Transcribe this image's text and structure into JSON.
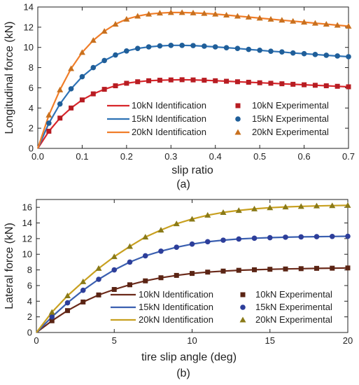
{
  "chart_data": [
    {
      "type": "line",
      "caption": "(a)",
      "xlabel": "slip ratio",
      "ylabel": "Longitudinal force (kN)",
      "xlim": [
        0,
        0.7
      ],
      "ylim": [
        0,
        14
      ],
      "xticks": [
        0.0,
        0.1,
        0.2,
        0.3,
        0.4,
        0.5,
        0.6,
        0.7
      ],
      "xtick_labels": [
        "0.0",
        "0.1",
        "0.2",
        "0.3",
        "0.4",
        "0.5",
        "0.6",
        "0.7"
      ],
      "yticks": [
        0,
        2,
        4,
        6,
        8,
        10,
        12,
        14
      ],
      "ytick_labels": [
        "0",
        "2",
        "4",
        "6",
        "8",
        "10",
        "12",
        "14"
      ],
      "grid": false,
      "legend_placement": "bottom",
      "x": [
        0,
        0.025,
        0.05,
        0.075,
        0.1,
        0.125,
        0.15,
        0.175,
        0.2,
        0.225,
        0.25,
        0.275,
        0.3,
        0.325,
        0.35,
        0.375,
        0.4,
        0.425,
        0.45,
        0.475,
        0.5,
        0.525,
        0.55,
        0.575,
        0.6,
        0.625,
        0.65,
        0.675,
        0.7
      ],
      "series": [
        {
          "name": "10kN Identification",
          "kind": "line",
          "color": "#d7262b",
          "values": [
            0,
            1.7,
            3.0,
            4.0,
            4.8,
            5.4,
            5.85,
            6.2,
            6.45,
            6.6,
            6.7,
            6.75,
            6.78,
            6.8,
            6.78,
            6.75,
            6.7,
            6.65,
            6.6,
            6.55,
            6.5,
            6.45,
            6.4,
            6.35,
            6.3,
            6.25,
            6.2,
            6.15,
            6.1
          ]
        },
        {
          "name": "15kN Identification",
          "kind": "line",
          "color": "#2e72b5",
          "values": [
            0,
            2.5,
            4.4,
            5.9,
            7.1,
            8.0,
            8.7,
            9.25,
            9.65,
            9.9,
            10.05,
            10.15,
            10.2,
            10.2,
            10.18,
            10.12,
            10.05,
            9.97,
            9.9,
            9.8,
            9.72,
            9.62,
            9.55,
            9.45,
            9.38,
            9.3,
            9.22,
            9.15,
            9.08
          ]
        },
        {
          "name": "20kN Identification",
          "kind": "line",
          "color": "#f07e2a",
          "values": [
            0,
            3.3,
            5.8,
            7.9,
            9.5,
            10.7,
            11.6,
            12.3,
            12.8,
            13.1,
            13.3,
            13.4,
            13.45,
            13.45,
            13.42,
            13.37,
            13.3,
            13.2,
            13.1,
            13.0,
            12.9,
            12.8,
            12.7,
            12.6,
            12.5,
            12.4,
            12.3,
            12.2,
            12.1
          ]
        },
        {
          "name": "10kN Experimental",
          "kind": "marker",
          "marker": "square",
          "color": "#b71c22",
          "values": [
            0,
            1.7,
            3.0,
            4.0,
            4.8,
            5.4,
            5.85,
            6.2,
            6.45,
            6.6,
            6.7,
            6.75,
            6.78,
            6.8,
            6.78,
            6.75,
            6.7,
            6.65,
            6.6,
            6.55,
            6.5,
            6.45,
            6.4,
            6.35,
            6.3,
            6.25,
            6.2,
            6.15,
            6.1
          ]
        },
        {
          "name": "15kN Experimental",
          "kind": "marker",
          "marker": "circle",
          "color": "#1f5e99",
          "values": [
            0,
            2.5,
            4.4,
            5.9,
            7.1,
            8.0,
            8.7,
            9.25,
            9.65,
            9.9,
            10.05,
            10.15,
            10.2,
            10.2,
            10.18,
            10.12,
            10.05,
            9.97,
            9.9,
            9.8,
            9.72,
            9.62,
            9.55,
            9.45,
            9.38,
            9.3,
            9.22,
            9.15,
            9.08
          ]
        },
        {
          "name": "20kN Experimental",
          "kind": "marker",
          "marker": "triangle",
          "color": "#c8701e",
          "values": [
            0,
            3.3,
            5.8,
            7.9,
            9.5,
            10.7,
            11.6,
            12.3,
            12.8,
            13.1,
            13.3,
            13.4,
            13.45,
            13.45,
            13.42,
            13.37,
            13.3,
            13.2,
            13.1,
            13.0,
            12.9,
            12.8,
            12.7,
            12.6,
            12.5,
            12.4,
            12.3,
            12.2,
            12.1
          ]
        }
      ]
    },
    {
      "type": "line",
      "caption": "(b)",
      "xlabel": "tire slip angle  (deg)",
      "ylabel": "Lateral force (kN)",
      "xlim": [
        0,
        20
      ],
      "ylim": [
        0,
        17
      ],
      "xticks": [
        0,
        5,
        10,
        15,
        20
      ],
      "xtick_labels": [
        "0",
        "5",
        "10",
        "15",
        "20"
      ],
      "yticks": [
        0,
        2,
        4,
        6,
        8,
        10,
        12,
        14,
        16
      ],
      "ytick_labels": [
        "0",
        "2",
        "4",
        "6",
        "8",
        "10",
        "12",
        "14",
        "16"
      ],
      "grid": false,
      "legend_placement": "bottom",
      "x": [
        0,
        1,
        2,
        3,
        4,
        5,
        6,
        7,
        8,
        9,
        10,
        11,
        12,
        13,
        14,
        15,
        16,
        17,
        18,
        19,
        20
      ],
      "series": [
        {
          "name": "10kN Identification",
          "kind": "line",
          "color": "#6b2a1a",
          "values": [
            0,
            1.5,
            2.8,
            3.9,
            4.8,
            5.5,
            6.1,
            6.6,
            7.0,
            7.3,
            7.55,
            7.72,
            7.85,
            7.95,
            8.02,
            8.08,
            8.12,
            8.16,
            8.2,
            8.22,
            8.25
          ]
        },
        {
          "name": "15kN Identification",
          "kind": "line",
          "color": "#3a5fb0",
          "values": [
            0,
            2.0,
            3.8,
            5.4,
            6.8,
            8.0,
            9.0,
            9.8,
            10.4,
            10.9,
            11.3,
            11.6,
            11.8,
            11.95,
            12.05,
            12.12,
            12.18,
            12.22,
            12.25,
            12.28,
            12.3
          ]
        },
        {
          "name": "20kN Identification",
          "kind": "line",
          "color": "#c8a020",
          "values": [
            0,
            2.6,
            4.7,
            6.5,
            8.2,
            9.7,
            11.0,
            12.2,
            13.1,
            13.9,
            14.5,
            15.0,
            15.35,
            15.6,
            15.8,
            15.95,
            16.05,
            16.12,
            16.18,
            16.22,
            16.25
          ]
        },
        {
          "name": "10kN Experimental",
          "kind": "marker",
          "marker": "square",
          "color": "#5a2414",
          "values": [
            0,
            1.5,
            2.8,
            3.9,
            4.8,
            5.5,
            6.1,
            6.6,
            7.0,
            7.3,
            7.55,
            7.72,
            7.85,
            7.95,
            8.02,
            8.08,
            8.12,
            8.16,
            8.2,
            8.22,
            8.25
          ]
        },
        {
          "name": "15kN Experimental",
          "kind": "marker",
          "marker": "circle",
          "color": "#2d3e9a",
          "values": [
            0,
            2.0,
            3.8,
            5.4,
            6.8,
            8.0,
            9.0,
            9.8,
            10.4,
            10.9,
            11.3,
            11.6,
            11.8,
            11.95,
            12.05,
            12.12,
            12.18,
            12.22,
            12.25,
            12.28,
            12.3
          ]
        },
        {
          "name": "20kN Experimental",
          "kind": "marker",
          "marker": "triangle",
          "color": "#8a7a18",
          "values": [
            0,
            2.6,
            4.7,
            6.5,
            8.2,
            9.7,
            11.0,
            12.2,
            13.1,
            13.9,
            14.5,
            15.0,
            15.35,
            15.6,
            15.8,
            15.95,
            16.05,
            16.12,
            16.18,
            16.22,
            16.25
          ]
        }
      ]
    }
  ]
}
